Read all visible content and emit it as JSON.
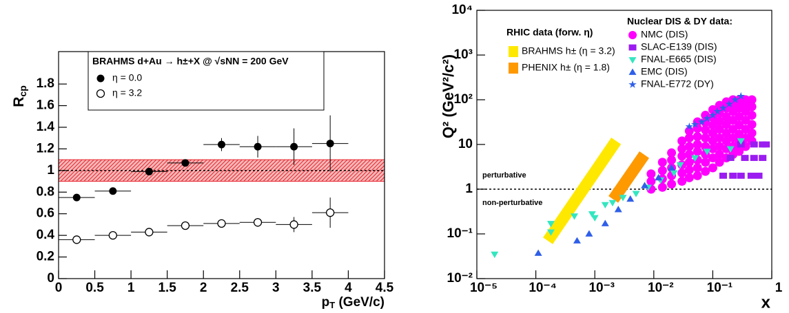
{
  "chart_data": [
    {
      "type": "errorbar",
      "legend_title": "BRAHMS d+Au → h±+X @ √sNN = 200 GeV",
      "xlabel": [
        "p",
        "T",
        " (GeV/c)"
      ],
      "ylabel": [
        "R",
        "cp"
      ],
      "xlim": [
        0,
        4.5
      ],
      "ylim": [
        0,
        2.1
      ],
      "xticks": [
        0,
        0.5,
        1,
        1.5,
        2,
        2.5,
        3,
        3.5,
        4,
        4.5
      ],
      "yticks": [
        0,
        0.2,
        0.4,
        0.6,
        0.8,
        1,
        1.2,
        1.4,
        1.6,
        1.8
      ],
      "hline": 1,
      "band": [
        0.9,
        1.1
      ],
      "band_color": "#e8202a",
      "series": [
        {
          "name": "η = 0.0",
          "marker": "circle",
          "color": "#000000",
          "x": [
            0.25,
            0.75,
            1.25,
            1.75,
            2.25,
            2.75,
            3.25,
            3.75
          ],
          "xerrors": [
            0.25,
            0.25,
            0.25,
            0.25,
            0.25,
            0.25,
            0.25,
            0.25
          ],
          "values": [
            0.75,
            0.81,
            0.99,
            1.07,
            1.24,
            1.22,
            1.22,
            1.25
          ],
          "errors": [
            0.02,
            0.02,
            0.02,
            0.03,
            0.06,
            0.1,
            0.17,
            0.26
          ]
        },
        {
          "name": "η = 3.2",
          "marker": "open-circle",
          "color": "#000000",
          "x": [
            0.25,
            0.75,
            1.25,
            1.75,
            2.25,
            2.75,
            3.25,
            3.75
          ],
          "xerrors": [
            0.25,
            0.25,
            0.25,
            0.25,
            0.25,
            0.25,
            0.25,
            0.25
          ],
          "values": [
            0.36,
            0.4,
            0.43,
            0.49,
            0.51,
            0.52,
            0.5,
            0.61
          ],
          "errors": [
            0.02,
            0.02,
            0.02,
            0.02,
            0.02,
            0.04,
            0.07,
            0.14
          ]
        }
      ]
    },
    {
      "type": "scatter",
      "xscale": "log",
      "yscale": "log",
      "xlabel": "x",
      "ylabel": "Q² (GeV²/c²)",
      "xlim": [
        1e-05,
        1
      ],
      "ylim": [
        0.01,
        10000
      ],
      "xticks": [
        {
          "value": 1e-05,
          "label": "10⁻⁵"
        },
        {
          "value": 0.0001,
          "label": "10⁻⁴"
        },
        {
          "value": 0.001,
          "label": "10⁻³"
        },
        {
          "value": 0.01,
          "label": "10⁻²"
        },
        {
          "value": 0.1,
          "label": "10⁻¹"
        },
        1
      ],
      "yticks": [
        {
          "value": 0.01,
          "label": "10⁻²"
        },
        {
          "value": 0.1,
          "label": "10⁻¹"
        },
        1,
        10,
        {
          "value": 100,
          "label": "10²"
        },
        {
          "value": 1000,
          "label": "10³"
        },
        {
          "value": 10000,
          "label": "10⁴"
        }
      ],
      "hline": 1,
      "annotations": [
        "perturbative",
        "non-perturbative"
      ],
      "legends": [
        "RHIC data (forw. η)",
        "Nuclear DIS & DY data:"
      ],
      "series": [
        {
          "name": "BRAHMS h± (η = 3.2)",
          "marker": "band",
          "legend": 0,
          "color": "#ffe800",
          "x": [
            0.00016,
            0.0023
          ],
          "values": [
            0.07,
            12
          ]
        },
        {
          "name": "PHENIX h± (η = 1.8)",
          "marker": "band",
          "legend": 0,
          "color": "#ff9900",
          "x": [
            0.00206,
            0.0069
          ],
          "values": [
            0.59,
            5.9
          ]
        },
        {
          "name": "NMC (DIS)",
          "marker": "circle",
          "legend": 1,
          "color": "#ff00ff",
          "x": [
            0.009,
            0.009,
            0.009,
            0.014,
            0.014,
            0.014,
            0.014,
            0.02,
            0.02,
            0.02,
            0.02,
            0.02,
            0.03,
            0.03,
            0.03,
            0.03,
            0.03,
            0.03,
            0.04,
            0.04,
            0.04,
            0.04,
            0.04,
            0.04,
            0.04,
            0.055,
            0.055,
            0.055,
            0.055,
            0.055,
            0.055,
            0.055,
            0.055,
            0.075,
            0.075,
            0.075,
            0.075,
            0.075,
            0.075,
            0.075,
            0.075,
            0.1,
            0.1,
            0.1,
            0.1,
            0.1,
            0.1,
            0.1,
            0.1,
            0.13,
            0.13,
            0.13,
            0.13,
            0.13,
            0.13,
            0.13,
            0.13,
            0.17,
            0.17,
            0.17,
            0.17,
            0.17,
            0.17,
            0.17,
            0.17,
            0.22,
            0.22,
            0.22,
            0.22,
            0.22,
            0.22,
            0.22,
            0.22,
            0.28,
            0.28,
            0.28,
            0.28,
            0.28,
            0.28,
            0.28,
            0.28,
            0.36,
            0.36,
            0.36,
            0.36,
            0.36,
            0.36,
            0.36,
            0.46,
            0.46,
            0.46,
            0.46,
            0.46,
            0.46
          ],
          "values": [
            1,
            1.5,
            2.2,
            1.1,
            1.7,
            2.6,
            4,
            1.3,
            2,
            3,
            4.5,
            6.5,
            1.5,
            2.3,
            3.5,
            5.5,
            8,
            12,
            1.8,
            2.7,
            4,
            6,
            9,
            14,
            20,
            2,
            3,
            4.5,
            7,
            10,
            15,
            23,
            32,
            2.5,
            4,
            6,
            9,
            14,
            21,
            31,
            45,
            3,
            5,
            8,
            12,
            18,
            27,
            40,
            60,
            4,
            6,
            9,
            14,
            22,
            33,
            50,
            75,
            5,
            8,
            12,
            18,
            28,
            42,
            65,
            90,
            6,
            9,
            14,
            22,
            35,
            55,
            80,
            100,
            7,
            11,
            17,
            27,
            42,
            65,
            90,
            100,
            9,
            14,
            22,
            35,
            55,
            80,
            100,
            12,
            18,
            28,
            45,
            70,
            100
          ]
        },
        {
          "name": "SLAC-E139 (DIS)",
          "marker": "square",
          "legend": 1,
          "color": "#9b1cf0",
          "x": [
            0.15,
            0.22,
            0.3,
            0.45,
            0.6,
            0.2,
            0.35,
            0.5,
            0.7,
            0.3,
            0.5,
            0.7,
            0.8
          ],
          "values": [
            2,
            2,
            2,
            2,
            2,
            5,
            5,
            5,
            5,
            10,
            10,
            10,
            10
          ]
        },
        {
          "name": "FNAL-E665 (DIS)",
          "marker": "triangle-down",
          "legend": 1,
          "color": "#33e6c0",
          "x": [
            2e-05,
            0.00018,
            0.00018,
            0.00045,
            0.0009,
            0.001,
            0.0015,
            0.002,
            0.003,
            0.005,
            0.008,
            0.013,
            0.022,
            0.028,
            0.05,
            0.08,
            0.2,
            0.3
          ],
          "values": [
            0.035,
            0.17,
            0.11,
            0.25,
            0.28,
            0.23,
            0.45,
            0.5,
            0.65,
            0.8,
            1.1,
            1.6,
            2.3,
            3.5,
            5,
            7,
            8,
            12
          ]
        },
        {
          "name": "EMC (DIS)",
          "marker": "triangle-up",
          "legend": 1,
          "color": "#2f5fe8",
          "x": [
            0.00011,
            0.0005,
            0.0008,
            0.0015,
            0.0025,
            0.004,
            0.007,
            0.012,
            0.02
          ],
          "values": [
            0.037,
            0.07,
            0.1,
            0.17,
            0.35,
            0.6,
            1.2,
            1.8,
            3
          ]
        },
        {
          "name": "FNAL-E772 (DY)",
          "marker": "star",
          "legend": 1,
          "color": "#2f5fe8",
          "x": [
            0.04,
            0.05,
            0.065,
            0.08,
            0.1,
            0.12,
            0.15,
            0.19,
            0.24,
            0.3
          ],
          "values": [
            25,
            28,
            32,
            38,
            45,
            55,
            65,
            80,
            100,
            120
          ]
        }
      ]
    }
  ]
}
